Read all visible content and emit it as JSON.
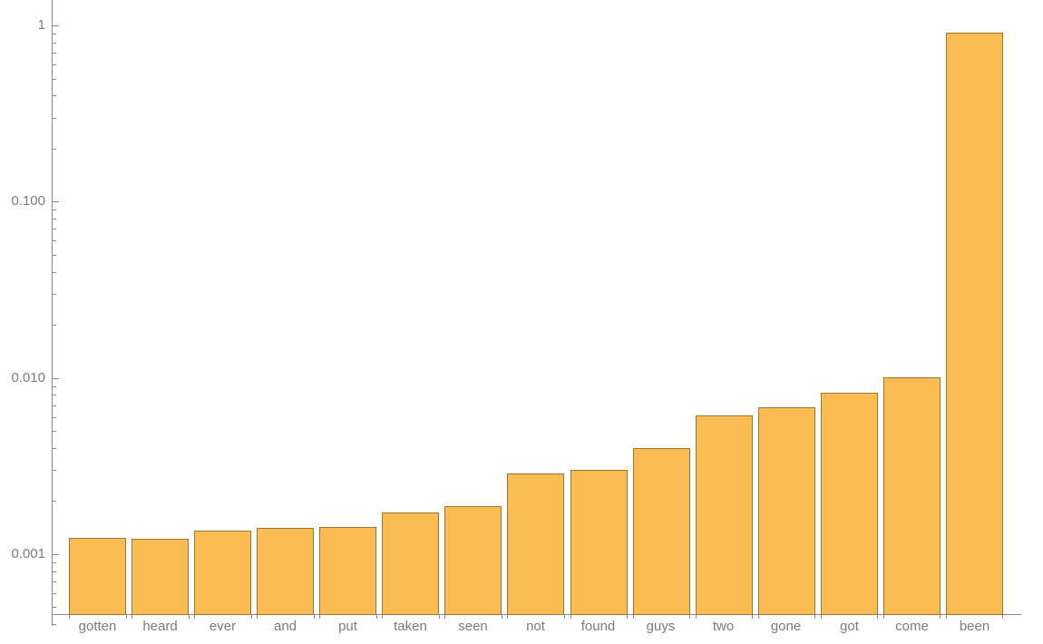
{
  "chart_data": {
    "type": "bar",
    "title": "",
    "xlabel": "",
    "ylabel": "",
    "yscale": "log",
    "grid": false,
    "legend": false,
    "categories": [
      "gotten",
      "heard",
      "ever",
      "and",
      "put",
      "taken",
      "seen",
      "not",
      "found",
      "guys",
      "two",
      "gone",
      "got",
      "come",
      "been"
    ],
    "values": [
      0.00124,
      0.00122,
      0.00136,
      0.00141,
      0.00143,
      0.00173,
      0.00187,
      0.00288,
      0.003,
      0.004,
      0.0061,
      0.0068,
      0.0082,
      0.0101,
      0.91
    ],
    "ylim": [
      0.000457,
      1.394
    ],
    "yticks": [
      {
        "value": 1,
        "label": "1"
      },
      {
        "value": 0.1,
        "label": "0.100"
      },
      {
        "value": 0.01,
        "label": "0.010"
      },
      {
        "value": 0.001,
        "label": "0.001"
      }
    ],
    "colors": {
      "bar_fill": "#fbbd53",
      "bar_edge": "#9a7730",
      "axis": "#8a8a8a",
      "label_text": "#7b7b7b"
    }
  }
}
